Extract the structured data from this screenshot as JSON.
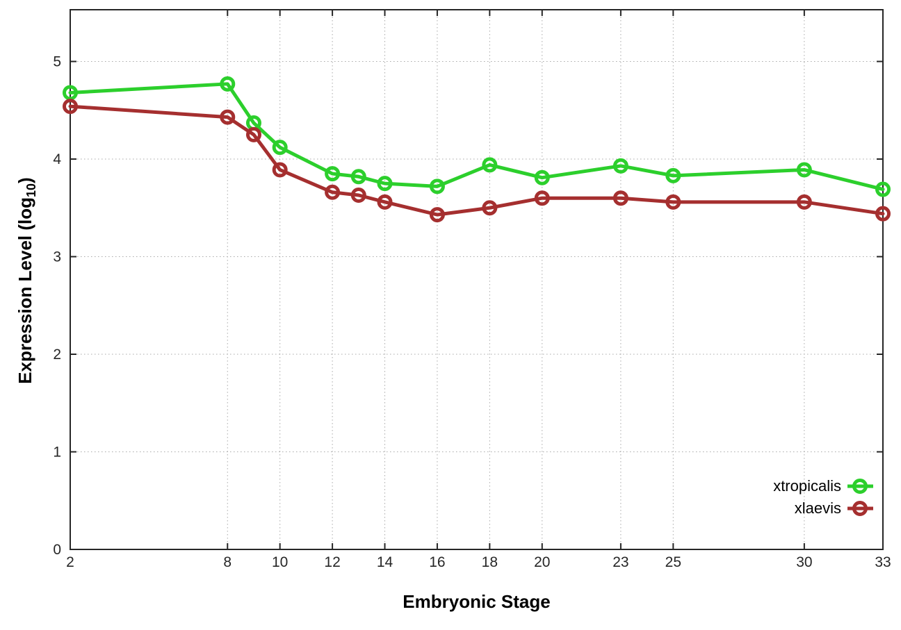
{
  "chart_data": {
    "type": "line",
    "title": "",
    "xlabel": "Embryonic Stage",
    "ylabel_prefix": "Expression Level (log",
    "ylabel_sub": "10",
    "ylabel_suffix": ")",
    "x": [
      2,
      8,
      9,
      10,
      12,
      13,
      14,
      16,
      18,
      20,
      23,
      25,
      30,
      33
    ],
    "xticks": [
      2,
      8,
      10,
      12,
      14,
      16,
      18,
      20,
      23,
      25,
      30,
      33
    ],
    "yticks": [
      0,
      1,
      2,
      3,
      4,
      5
    ],
    "xlim": [
      2,
      33
    ],
    "ylim": [
      0,
      5.53
    ],
    "grid": true,
    "legend_position": "bottom-right-inside",
    "series": [
      {
        "name": "xtropicalis",
        "color": "#2ccf2c",
        "marker": "open-circle",
        "values": [
          4.68,
          4.77,
          4.37,
          4.12,
          3.85,
          3.82,
          3.75,
          3.72,
          3.94,
          3.81,
          3.93,
          3.83,
          3.89,
          3.69
        ]
      },
      {
        "name": "xlaevis",
        "color": "#a52f2f",
        "marker": "open-circle",
        "values": [
          4.54,
          4.43,
          4.25,
          3.89,
          3.66,
          3.63,
          3.56,
          3.43,
          3.5,
          3.6,
          3.6,
          3.56,
          3.56,
          3.44
        ]
      }
    ]
  },
  "colors": {
    "border": "#262626",
    "grid": "#a8a8a8",
    "tick_label": "#262626",
    "background": "#ffffff"
  }
}
